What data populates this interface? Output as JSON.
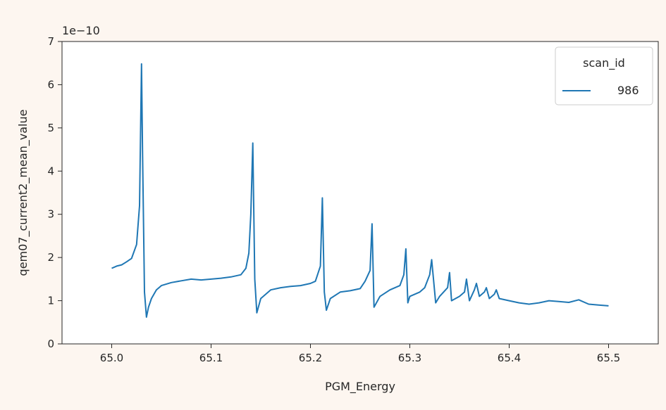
{
  "chart_data": {
    "type": "line",
    "xlabel": "PGM_Energy",
    "ylabel": "qem07_current2_mean_value",
    "y_offset_label": "1e−10",
    "xlim": [
      64.95,
      65.55
    ],
    "ylim": [
      0,
      7
    ],
    "x_ticks": [
      65.0,
      65.1,
      65.2,
      65.3,
      65.4,
      65.5
    ],
    "x_tick_labels": [
      "65.0",
      "65.1",
      "65.2",
      "65.3",
      "65.4",
      "65.5"
    ],
    "y_ticks": [
      0,
      1,
      2,
      3,
      4,
      5,
      6,
      7
    ],
    "y_tick_labels": [
      "0",
      "1",
      "2",
      "3",
      "4",
      "5",
      "6",
      "7"
    ],
    "grid": false,
    "legend": {
      "title": "scan_id",
      "placement": "top-right"
    },
    "colors": {
      "series": "#1f77b4",
      "background": "#fdf6f0",
      "axes_bg": "#ffffff"
    },
    "series": [
      {
        "name": "986",
        "x": [
          65.0,
          65.005,
          65.01,
          65.015,
          65.02,
          65.025,
          65.028,
          65.03,
          65.031,
          65.033,
          65.035,
          65.037,
          65.04,
          65.045,
          65.05,
          65.06,
          65.07,
          65.08,
          65.09,
          65.1,
          65.11,
          65.12,
          65.13,
          65.135,
          65.138,
          65.14,
          65.142,
          65.144,
          65.146,
          65.15,
          65.16,
          65.17,
          65.18,
          65.19,
          65.2,
          65.205,
          65.21,
          65.212,
          65.214,
          65.216,
          65.22,
          65.23,
          65.24,
          65.25,
          65.255,
          65.26,
          65.262,
          65.264,
          65.27,
          65.28,
          65.29,
          65.294,
          65.296,
          65.298,
          65.3,
          65.31,
          65.315,
          65.32,
          65.322,
          65.326,
          65.33,
          65.338,
          65.34,
          65.342,
          65.35,
          65.355,
          65.357,
          65.36,
          65.365,
          65.367,
          65.37,
          65.375,
          65.377,
          65.38,
          65.385,
          65.387,
          65.39,
          65.4,
          65.41,
          65.42,
          65.43,
          65.44,
          65.45,
          65.46,
          65.47,
          65.48,
          65.49,
          65.5
        ],
        "values": [
          1.75,
          1.8,
          1.83,
          1.9,
          1.98,
          2.3,
          3.2,
          6.48,
          4.5,
          1.2,
          0.62,
          0.85,
          1.05,
          1.25,
          1.35,
          1.42,
          1.46,
          1.5,
          1.48,
          1.5,
          1.52,
          1.55,
          1.6,
          1.75,
          2.1,
          3.0,
          4.65,
          1.5,
          0.72,
          1.05,
          1.25,
          1.3,
          1.33,
          1.35,
          1.4,
          1.45,
          1.8,
          3.38,
          1.2,
          0.78,
          1.05,
          1.2,
          1.23,
          1.28,
          1.45,
          1.7,
          2.78,
          0.85,
          1.1,
          1.25,
          1.35,
          1.6,
          2.2,
          0.95,
          1.1,
          1.2,
          1.3,
          1.6,
          1.95,
          0.95,
          1.1,
          1.3,
          1.65,
          1.0,
          1.1,
          1.2,
          1.5,
          1.0,
          1.25,
          1.4,
          1.1,
          1.2,
          1.3,
          1.05,
          1.15,
          1.25,
          1.05,
          1.0,
          0.95,
          0.92,
          0.95,
          1.0,
          0.98,
          0.96,
          1.02,
          0.92,
          0.9,
          0.88
        ]
      }
    ]
  }
}
